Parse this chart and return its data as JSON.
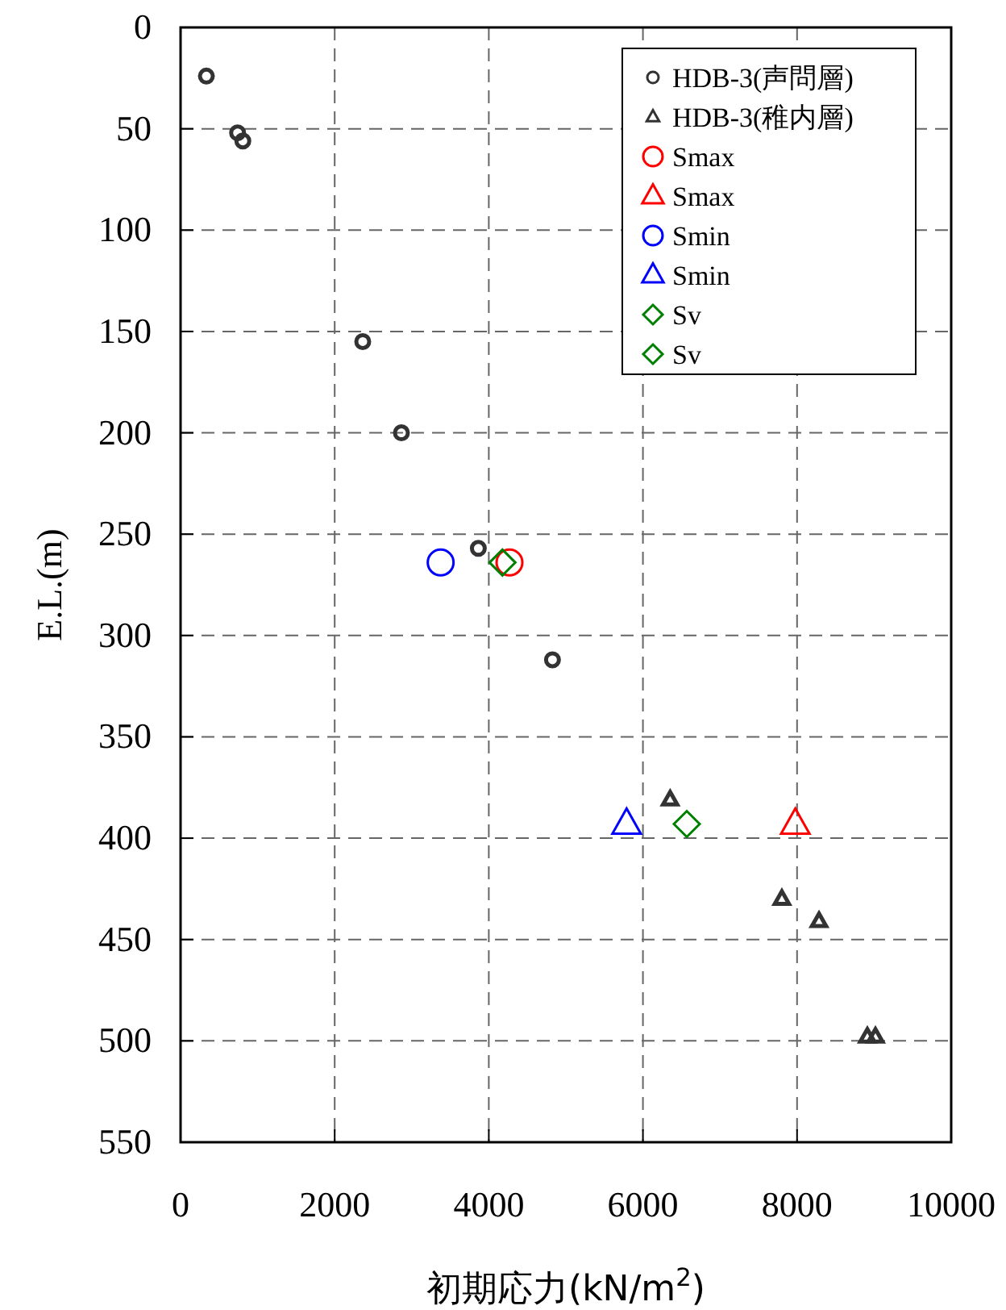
{
  "chart_data": {
    "type": "scatter",
    "xlabel": "初期応力(kN/m$^{2}$)",
    "ylabel": "E.L.(m)",
    "xlim": [
      0,
      10000
    ],
    "xticks": [
      0,
      2000,
      4000,
      6000,
      8000,
      10000
    ],
    "ylim": [
      550,
      0
    ],
    "yticks": [
      0,
      50,
      100,
      150,
      200,
      250,
      300,
      350,
      400,
      450,
      500,
      550
    ],
    "grid": true,
    "legend": "top right",
    "series": [
      {
        "name": "HDB-3(声問層)",
        "color": "#333333",
        "marker": "circle",
        "x": [
          335,
          740,
          808,
          2364,
          2866,
          3864,
          4826
        ],
        "values": [
          24,
          52,
          56,
          155,
          200,
          257,
          312
        ]
      },
      {
        "name": "HDB-3(稚内層)",
        "color": "#333333",
        "marker": "triangle",
        "x": [
          6353,
          7803,
          8285,
          8912,
          9017
        ],
        "values": [
          381,
          430,
          441,
          498,
          498
        ]
      },
      {
        "name": "Smax",
        "color": "#ff0000",
        "marker": "circle",
        "x": [
          4268
        ],
        "values": [
          264
        ]
      },
      {
        "name": "Smax",
        "color": "#ff0000",
        "marker": "triangle",
        "x": [
          7977
        ],
        "values": [
          393
        ]
      },
      {
        "name": "Smin",
        "color": "#0000ff",
        "marker": "circle",
        "x": [
          3375
        ],
        "values": [
          264
        ]
      },
      {
        "name": "Smin",
        "color": "#0000ff",
        "marker": "triangle",
        "x": [
          5788
        ],
        "values": [
          393
        ]
      },
      {
        "name": "Sv",
        "color": "#008000",
        "marker": "diamond",
        "x": [
          4177
        ],
        "values": [
          264
        ]
      },
      {
        "name": "Sv",
        "color": "#008000",
        "marker": "diamond",
        "x": [
          6569
        ],
        "values": [
          393
        ]
      }
    ]
  }
}
